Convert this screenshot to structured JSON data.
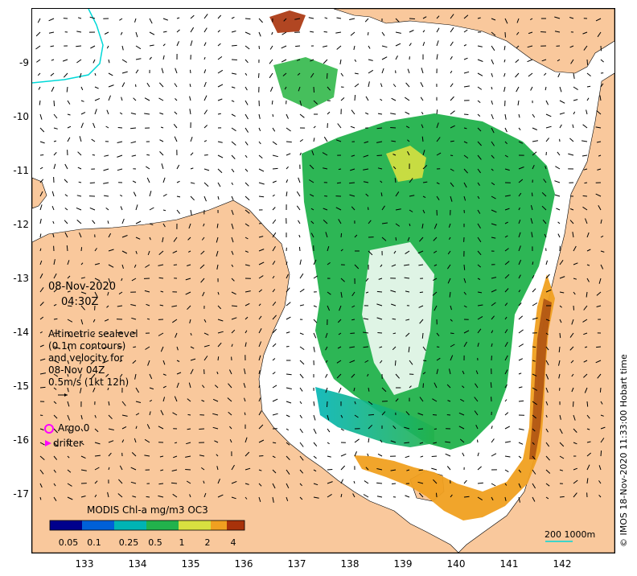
{
  "map": {
    "y_ticks": [
      "-9",
      "-10",
      "-11",
      "-12",
      "-13",
      "-14",
      "-15",
      "-16",
      "-17"
    ],
    "x_ticks": [
      "133",
      "134",
      "135",
      "136",
      "137",
      "138",
      "139",
      "140",
      "141",
      "142"
    ],
    "colors": {
      "land": "#f9c89c",
      "sea": "#ffffff",
      "contour": "#00d8d8",
      "drifter": "#ff00ff"
    }
  },
  "annotations": {
    "date": "08-Nov-2020",
    "time": "04:30Z",
    "legend_lines": [
      "Altimetric sealevel",
      "(0.1m contours)",
      "and velocity for",
      "08-Nov 04Z",
      "0.5m/s (1kt 12h)"
    ],
    "argo_label": "Argo 0",
    "drifter_label": "drifter",
    "colorbar_title": "MODIS Chl-a mg/m3 OC3",
    "colorbar_ticks": [
      "0.05",
      "0.1",
      "0.25",
      "0.5",
      "1",
      "2",
      "4"
    ],
    "scale_label": "200  1000m",
    "credit": "© IMOS 18-Nov-2020 11:33:00 Hobart time"
  }
}
